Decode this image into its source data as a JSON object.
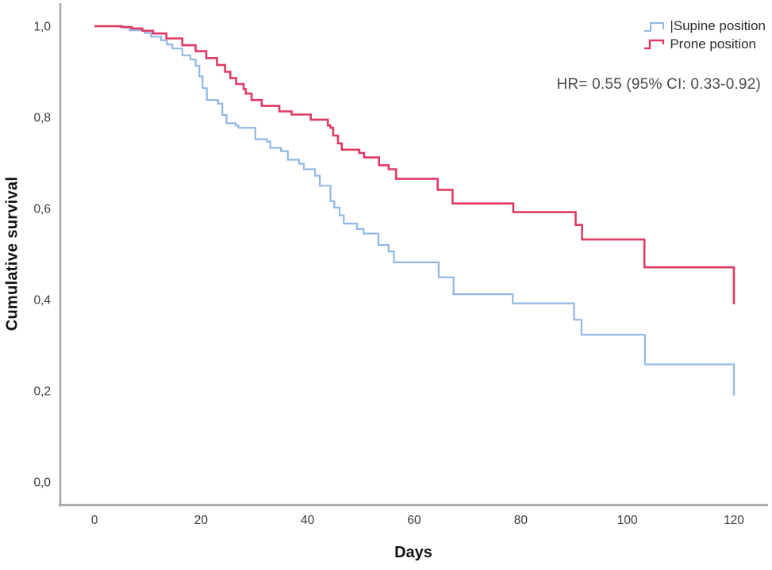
{
  "chart_data": {
    "type": "line",
    "subtype": "kaplan-meier-step",
    "title": "",
    "xlabel": "Days",
    "ylabel": "Cumulative survival",
    "xlim": [
      0,
      120
    ],
    "ylim": [
      0.0,
      1.0
    ],
    "grid": false,
    "legend_position": "top-right",
    "annotation": "HR= 0.55 (95% CI: 0.33-0.92)",
    "x_ticks": {
      "values": [
        0,
        20,
        40,
        60,
        80,
        100,
        120
      ],
      "labels": [
        "0",
        "20",
        "40",
        "60",
        "80",
        "100",
        "120"
      ]
    },
    "y_ticks": {
      "values": [
        0.0,
        0.2,
        0.4,
        0.6,
        0.8,
        1.0
      ],
      "labels": [
        "0,0",
        "0,2",
        "0,4",
        "0,6",
        "0,8",
        "1,0"
      ]
    },
    "series": [
      {
        "name": "|Supine position",
        "color": "#90B8E6",
        "points": [
          [
            0,
            1.0
          ],
          [
            5.5,
            0.997
          ],
          [
            6.6,
            0.991
          ],
          [
            9.5,
            0.985
          ],
          [
            10.6,
            0.977
          ],
          [
            12.5,
            0.969
          ],
          [
            13.6,
            0.96
          ],
          [
            14.6,
            0.951
          ],
          [
            16.5,
            0.936
          ],
          [
            18,
            0.927
          ],
          [
            19,
            0.913
          ],
          [
            19.7,
            0.89
          ],
          [
            20.3,
            0.864
          ],
          [
            21.1,
            0.838
          ],
          [
            23.2,
            0.83
          ],
          [
            24,
            0.805
          ],
          [
            24.8,
            0.787
          ],
          [
            26.5,
            0.782
          ],
          [
            27,
            0.777
          ],
          [
            30.2,
            0.752
          ],
          [
            32.4,
            0.747
          ],
          [
            33,
            0.733
          ],
          [
            35,
            0.726
          ],
          [
            36.3,
            0.707
          ],
          [
            38.4,
            0.698
          ],
          [
            39.3,
            0.686
          ],
          [
            41.4,
            0.672
          ],
          [
            42.3,
            0.65
          ],
          [
            44.3,
            0.616
          ],
          [
            45,
            0.602
          ],
          [
            46,
            0.585
          ],
          [
            46.8,
            0.567
          ],
          [
            49.3,
            0.555
          ],
          [
            50.5,
            0.545
          ],
          [
            53.3,
            0.52
          ],
          [
            55.2,
            0.506
          ],
          [
            56.2,
            0.482
          ],
          [
            64.6,
            0.449
          ],
          [
            67.4,
            0.412
          ],
          [
            78.5,
            0.392
          ],
          [
            90,
            0.356
          ],
          [
            91.4,
            0.323
          ],
          [
            103.3,
            0.258
          ],
          [
            120,
            0.19
          ]
        ]
      },
      {
        "name": "Prone position",
        "color": "#E03A64",
        "points": [
          [
            0,
            1.0
          ],
          [
            5,
            0.998
          ],
          [
            7,
            0.995
          ],
          [
            9,
            0.99
          ],
          [
            11,
            0.984
          ],
          [
            13.5,
            0.973
          ],
          [
            16.5,
            0.958
          ],
          [
            19,
            0.945
          ],
          [
            21,
            0.93
          ],
          [
            23,
            0.915
          ],
          [
            24.5,
            0.9
          ],
          [
            25.5,
            0.886
          ],
          [
            26.6,
            0.873
          ],
          [
            28,
            0.862
          ],
          [
            28.4,
            0.852
          ],
          [
            29.5,
            0.838
          ],
          [
            31.4,
            0.825
          ],
          [
            34.7,
            0.813
          ],
          [
            37,
            0.806
          ],
          [
            40.6,
            0.795
          ],
          [
            43.8,
            0.782
          ],
          [
            44.3,
            0.777
          ],
          [
            44.8,
            0.76
          ],
          [
            45.7,
            0.743
          ],
          [
            46.4,
            0.729
          ],
          [
            49.7,
            0.722
          ],
          [
            50.6,
            0.712
          ],
          [
            53.4,
            0.695
          ],
          [
            55.2,
            0.686
          ],
          [
            56.6,
            0.665
          ],
          [
            64.4,
            0.641
          ],
          [
            67.2,
            0.611
          ],
          [
            78.6,
            0.592
          ],
          [
            90.3,
            0.564
          ],
          [
            91.5,
            0.532
          ],
          [
            103.2,
            0.471
          ],
          [
            120,
            0.39
          ]
        ]
      }
    ]
  }
}
